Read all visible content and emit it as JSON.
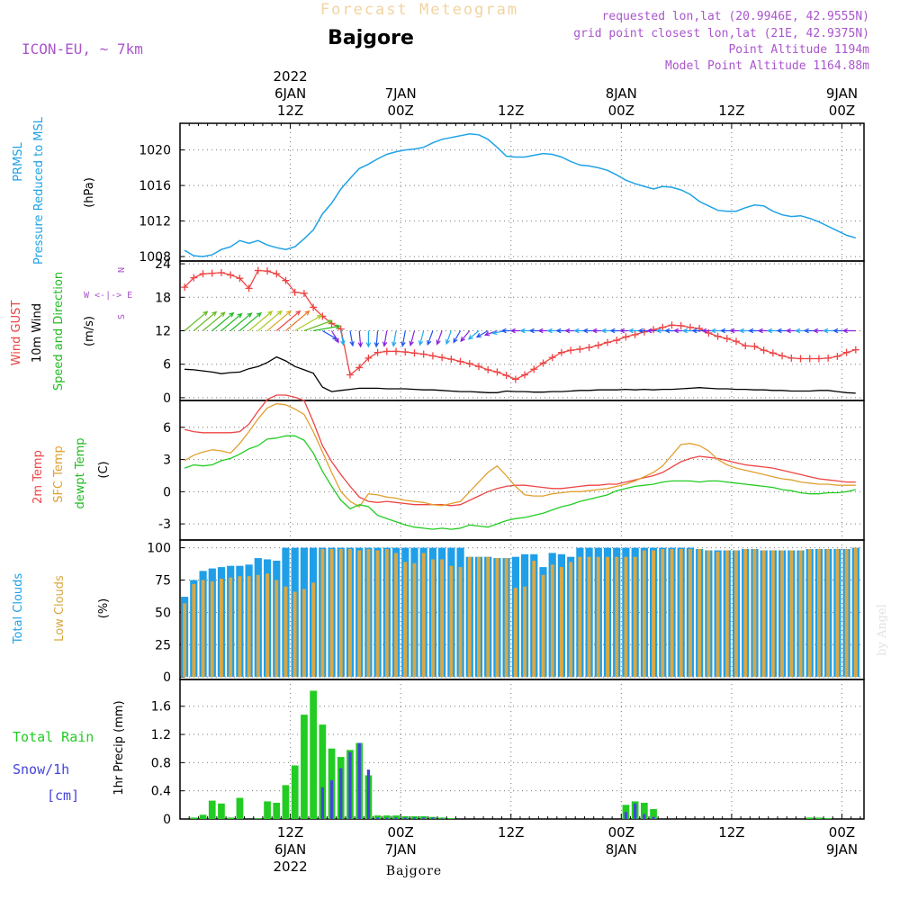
{
  "header": {
    "forecast_title": "Forecast Meteogram",
    "location": "Bajgore",
    "model": "ICON-EU, ~ 7km",
    "requested": "requested lon,lat (20.9946E, 42.9555N)",
    "grid_point": "grid point closest lon,lat (21E, 42.9375N)",
    "point_altitude": "Point Altitude 1194m",
    "model_altitude": "Model Point Altitude 1164.88m",
    "credit": "by Angel",
    "footer_location": "Bajgore"
  },
  "colors": {
    "pressure": "#1fa2e6",
    "gust": "#ee4444",
    "wind": "#000000",
    "direction": "#22bb22",
    "temp2m": "#ee4444",
    "sfc": "#e0a030",
    "dewpt": "#22cc22",
    "total_clouds": "#1f9fe8",
    "low_clouds": "#d9a845",
    "rain": "#22cc22",
    "snow": "#4444dd",
    "grid": "#777777",
    "axis": "#000000",
    "label_purple": "#aa55cc"
  },
  "time_axis": {
    "top_labels": [
      {
        "t": 0,
        "lines": [
          "2022",
          "6JAN",
          "12Z"
        ]
      },
      {
        "t": 12,
        "lines": [
          "7JAN",
          "00Z"
        ]
      },
      {
        "t": 24,
        "lines": [
          "12Z"
        ]
      },
      {
        "t": 36,
        "lines": [
          "8JAN",
          "00Z"
        ]
      },
      {
        "t": 48,
        "lines": [
          "12Z"
        ]
      },
      {
        "t": 60,
        "lines": [
          "9JAN",
          "00Z"
        ]
      }
    ],
    "bottom_labels": [
      {
        "t": 0,
        "lines": [
          "12Z",
          "6JAN",
          "2022"
        ]
      },
      {
        "t": 12,
        "lines": [
          "00Z",
          "7JAN"
        ]
      },
      {
        "t": 24,
        "lines": [
          "12Z"
        ]
      },
      {
        "t": 36,
        "lines": [
          "00Z",
          "8JAN"
        ]
      },
      {
        "t": 48,
        "lines": [
          "12Z"
        ]
      },
      {
        "t": 60,
        "lines": [
          "00Z",
          "9JAN"
        ]
      }
    ]
  },
  "panels": {
    "pressure": {
      "labels": [
        "PRMSL",
        "Pressure Reduced to MSL"
      ],
      "unit": "(hPa)"
    },
    "wind": {
      "labels": [
        "Wind GUST",
        "10m Wind",
        "Speed and Direction"
      ],
      "unit": "(m/s)",
      "compass": [
        "N",
        "W <-|-> E",
        "S"
      ]
    },
    "temp": {
      "labels": [
        "2m Temp",
        "SFC Temp",
        "dewpt Temp"
      ],
      "unit": "(C)"
    },
    "clouds": {
      "labels": [
        "Total Clouds",
        "Low Clouds"
      ],
      "unit": "(%)"
    },
    "precip": {
      "labels": [
        "Total  Rain",
        "Snow/1h",
        "[cm]"
      ],
      "unit": "1hr Precip (mm)"
    }
  },
  "chart_data": [
    {
      "type": "line",
      "series": [
        {
          "name": "PRMSL",
          "values": [
            1008.7,
            1008.1,
            1008,
            1008.2,
            1008.8,
            1009.1,
            1009.8,
            1009.5,
            1009.8,
            1009.3,
            1009,
            1008.8,
            1009.1,
            1010,
            1011,
            1012.8,
            1014,
            1015.6,
            1016.8,
            1017.9,
            1018.4,
            1019,
            1019.5,
            1019.8,
            1020,
            1020.1,
            1020.3,
            1020.8,
            1021.2,
            1021.4,
            1021.6,
            1021.8,
            1021.7,
            1021.2,
            1020.3,
            1019.3,
            1019.2,
            1019.2,
            1019.4,
            1019.6,
            1019.5,
            1019.2,
            1018.7,
            1018.3,
            1018.2,
            1018,
            1017.7,
            1017.2,
            1016.6,
            1016.2,
            1015.9,
            1015.6,
            1015.9,
            1015.8,
            1015.5,
            1015,
            1014.2,
            1013.7,
            1013.2,
            1013.1,
            1013.1,
            1013.5,
            1013.8,
            1013.7,
            1013.1,
            1012.7,
            1012.5,
            1012.6,
            1012.3,
            1011.9,
            1011.4,
            1010.9,
            1010.4,
            1010.1
          ]
        }
      ],
      "x": {
        "start": -11.5,
        "step": 1
      },
      "yticks": [
        1008,
        1012,
        1016,
        1020
      ],
      "ylim": [
        1007.5,
        1023
      ]
    },
    {
      "type": "line",
      "series": [
        {
          "name": "Wind GUST",
          "values": [
            19.8,
            21.5,
            22.2,
            22.3,
            22.4,
            22,
            21.4,
            19.6,
            22.8,
            22.7,
            22.2,
            21,
            18.9,
            18.7,
            16.2,
            14.6,
            13.3,
            12.3,
            4.1,
            5.4,
            7.1,
            8.1,
            8.3,
            8.3,
            8.2,
            8,
            7.8,
            7.5,
            7.2,
            6.9,
            6.5,
            6.1,
            5.6,
            5,
            4.6,
            4,
            3.3,
            4.1,
            5.1,
            6.2,
            7.2,
            8.1,
            8.5,
            8.7,
            9,
            9.4,
            9.9,
            10.3,
            10.9,
            11.3,
            11.8,
            12.2,
            12.6,
            13,
            12.9,
            12.6,
            12.4,
            11.6,
            11,
            10.6,
            10.1,
            9.3,
            9.2,
            8.5,
            8,
            7.5,
            7.1,
            7,
            7,
            7,
            7.1,
            7.4,
            8.1,
            8.6
          ]
        },
        {
          "name": "10m Wind",
          "values": [
            5.1,
            5,
            4.8,
            4.6,
            4.3,
            4.5,
            4.6,
            5.2,
            5.6,
            6.3,
            7.3,
            6.6,
            5.6,
            5,
            4.4,
            1.9,
            1.1,
            1.3,
            1.5,
            1.7,
            1.7,
            1.7,
            1.6,
            1.6,
            1.6,
            1.5,
            1.4,
            1.4,
            1.3,
            1.2,
            1.1,
            1.1,
            1,
            0.9,
            0.9,
            1.2,
            1.1,
            1.1,
            1,
            1,
            1.1,
            1.1,
            1.2,
            1.3,
            1.3,
            1.4,
            1.4,
            1.4,
            1.5,
            1.4,
            1.5,
            1.4,
            1.5,
            1.5,
            1.6,
            1.7,
            1.8,
            1.7,
            1.6,
            1.6,
            1.5,
            1.5,
            1.4,
            1.4,
            1.3,
            1.3,
            1.2,
            1.2,
            1.2,
            1.3,
            1.3,
            1.1,
            0.9,
            0.8
          ]
        }
      ],
      "wind_arrows_from_deg": [
        230,
        230,
        230,
        230,
        230,
        230,
        230,
        230,
        230,
        230,
        230,
        230,
        240,
        250,
        260,
        300,
        330,
        350,
        350,
        355,
        0,
        5,
        10,
        10,
        10,
        15,
        15,
        20,
        20,
        20,
        30,
        40,
        50,
        60,
        70,
        80,
        90,
        90,
        90,
        90,
        90,
        90,
        90,
        90,
        90,
        90,
        90,
        90,
        90,
        90,
        90,
        90,
        90,
        90,
        90,
        90,
        90,
        90,
        90,
        90,
        90,
        90,
        90,
        90,
        90,
        90,
        90,
        90,
        90,
        90,
        90,
        90,
        90,
        90
      ],
      "x": {
        "start": -11.5,
        "step": 1
      },
      "yticks": [
        0,
        6,
        12,
        18,
        24
      ],
      "ylim": [
        -0.5,
        24.5
      ]
    },
    {
      "type": "line",
      "series": [
        {
          "name": "2m Temp",
          "values": [
            5.8,
            5.6,
            5.5,
            5.5,
            5.5,
            5.5,
            5.6,
            6.3,
            7.5,
            8.6,
            9,
            9,
            8.8,
            8.5,
            6.5,
            4.3,
            2.8,
            1.6,
            0.5,
            -0.5,
            -0.9,
            -1,
            -0.9,
            -1,
            -1.1,
            -1.2,
            -1.2,
            -1.2,
            -1.2,
            -1.3,
            -1.2,
            -0.8,
            -0.4,
            0,
            0.3,
            0.5,
            0.6,
            0.6,
            0.5,
            0.4,
            0.3,
            0.3,
            0.4,
            0.5,
            0.6,
            0.6,
            0.7,
            0.7,
            0.9,
            1.1,
            1.3,
            1.5,
            1.8,
            2.3,
            2.8,
            3.1,
            3.3,
            3.2,
            3.1,
            2.9,
            2.7,
            2.5,
            2.4,
            2.3,
            2.2,
            2,
            1.8,
            1.6,
            1.4,
            1.2,
            1.1,
            1,
            0.9,
            0.9
          ]
        },
        {
          "name": "SFC Temp",
          "values": [
            2.9,
            3.4,
            3.7,
            3.9,
            3.8,
            3.6,
            4.5,
            5.6,
            6.8,
            7.8,
            8.2,
            8.1,
            7.7,
            7.2,
            5.6,
            3.7,
            1.8,
            0,
            -0.9,
            -1.4,
            -0.2,
            -0.3,
            -0.5,
            -0.6,
            -0.8,
            -0.9,
            -1,
            -1.2,
            -1.3,
            -1.1,
            -0.9,
            0,
            0.9,
            1.8,
            2.4,
            1.5,
            0.5,
            -0.3,
            -0.4,
            -0.4,
            -0.2,
            -0.1,
            0,
            0,
            0.1,
            0.2,
            0.3,
            0.5,
            0.7,
            1,
            1.4,
            1.8,
            2.4,
            3.4,
            4.4,
            4.5,
            4.3,
            3.8,
            3,
            2.5,
            2.2,
            2,
            1.8,
            1.6,
            1.4,
            1.2,
            1.1,
            0.9,
            0.8,
            0.7,
            0.7,
            0.6,
            0.6,
            0.6
          ]
        },
        {
          "name": "dewpt Temp",
          "values": [
            2.2,
            2.5,
            2.4,
            2.5,
            2.9,
            3.1,
            3.5,
            4,
            4.3,
            4.9,
            5,
            5.2,
            5.2,
            4.8,
            3.6,
            1.9,
            0.5,
            -0.8,
            -1.6,
            -1.2,
            -1.4,
            -2.2,
            -2.5,
            -2.8,
            -3.1,
            -3.3,
            -3.4,
            -3.5,
            -3.4,
            -3.5,
            -3.4,
            -3.1,
            -3.2,
            -3.3,
            -3,
            -2.7,
            -2.5,
            -2.4,
            -2.2,
            -2,
            -1.7,
            -1.4,
            -1.2,
            -0.9,
            -0.7,
            -0.5,
            -0.3,
            0.1,
            0.3,
            0.5,
            0.6,
            0.7,
            0.9,
            1,
            1,
            1,
            0.9,
            1,
            1,
            0.9,
            0.8,
            0.7,
            0.6,
            0.5,
            0.4,
            0.2,
            0.1,
            -0.1,
            -0.2,
            -0.2,
            -0.1,
            -0.1,
            0,
            0.2
          ]
        }
      ],
      "x": {
        "start": -11.5,
        "step": 1
      },
      "yticks": [
        -3,
        0,
        3,
        6
      ],
      "ylim": [
        -4.5,
        8.5
      ]
    },
    {
      "type": "bar",
      "series": [
        {
          "name": "Total Clouds",
          "values": [
            62,
            75,
            82,
            84,
            85,
            86,
            86,
            87,
            92,
            91,
            90,
            100,
            100,
            100,
            100,
            100,
            100,
            100,
            100,
            100,
            100,
            100,
            100,
            100,
            100,
            100,
            100,
            100,
            100,
            100,
            100,
            93,
            93,
            93,
            92,
            92,
            93,
            95,
            95,
            85,
            96,
            95,
            93,
            100,
            100,
            100,
            100,
            100,
            100,
            100,
            100,
            100,
            100,
            100,
            100,
            100,
            99,
            98,
            98,
            98,
            98,
            99,
            99,
            98,
            98,
            98,
            98,
            98,
            99,
            99,
            99,
            99,
            99,
            100
          ]
        },
        {
          "name": "Low Clouds",
          "values": [
            57,
            72,
            75,
            74,
            76,
            77,
            78,
            78,
            79,
            80,
            75,
            70,
            66,
            68,
            73,
            99,
            99,
            99,
            99,
            98,
            99,
            98,
            99,
            96,
            89,
            88,
            96,
            91,
            91,
            86,
            85,
            93,
            93,
            93,
            92,
            92,
            69,
            70,
            90,
            79,
            87,
            85,
            89,
            93,
            93,
            93,
            93,
            93,
            93,
            93,
            98,
            98,
            99,
            99,
            99,
            99,
            99,
            98,
            97,
            98,
            98,
            99,
            99,
            98,
            98,
            98,
            98,
            98,
            99,
            99,
            99,
            99,
            99,
            100
          ]
        }
      ],
      "x": {
        "start": -11.5,
        "step": 1
      },
      "yticks": [
        0,
        25,
        50,
        75,
        100
      ],
      "ylim": [
        -2,
        106
      ]
    },
    {
      "type": "bar",
      "series": [
        {
          "name": "Total Rain",
          "values": [
            0,
            0.02,
            0.06,
            0.26,
            0.22,
            0.02,
            0.3,
            0,
            0.01,
            0.25,
            0.23,
            0.48,
            0.76,
            1.48,
            1.82,
            1.34,
            1,
            0.88,
            0.98,
            1.08,
            0.62,
            0.05,
            0.05,
            0.05,
            0.04,
            0.04,
            0.04,
            0.03,
            0.02,
            0.01,
            0,
            0,
            0,
            0,
            0,
            0,
            0,
            0,
            0,
            0,
            0,
            0,
            0,
            0,
            0,
            0,
            0,
            0,
            0.2,
            0.25,
            0.23,
            0.14,
            0,
            0,
            0,
            0,
            0,
            0,
            0,
            0,
            0,
            0,
            0,
            0,
            0,
            0,
            0,
            0,
            0.02,
            0.02,
            0.01,
            0,
            0,
            0
          ]
        },
        {
          "name": "Snow/1h",
          "values": [
            0,
            0,
            0,
            0,
            0,
            0,
            0,
            0,
            0,
            0,
            0,
            0,
            0,
            0,
            0,
            0.45,
            0.55,
            0.72,
            0.95,
            1.08,
            0.7,
            0.02,
            0.02,
            0.02,
            0.02,
            0.02,
            0.02,
            0.02,
            0.01,
            0,
            0,
            0,
            0,
            0,
            0,
            0,
            0,
            0,
            0,
            0,
            0,
            0,
            0,
            0,
            0,
            0,
            0,
            0,
            0.1,
            0.22,
            0.07,
            0.03,
            0,
            0,
            0,
            0,
            0,
            0,
            0,
            0,
            0,
            0,
            0,
            0,
            0,
            0,
            0,
            0,
            0,
            0,
            0,
            0,
            0,
            0
          ]
        }
      ],
      "x": {
        "start": -11.5,
        "step": 1
      },
      "yticks": [
        0,
        0.4,
        0.8,
        1.2,
        1.6
      ],
      "ylim": [
        0,
        1.98
      ]
    }
  ]
}
